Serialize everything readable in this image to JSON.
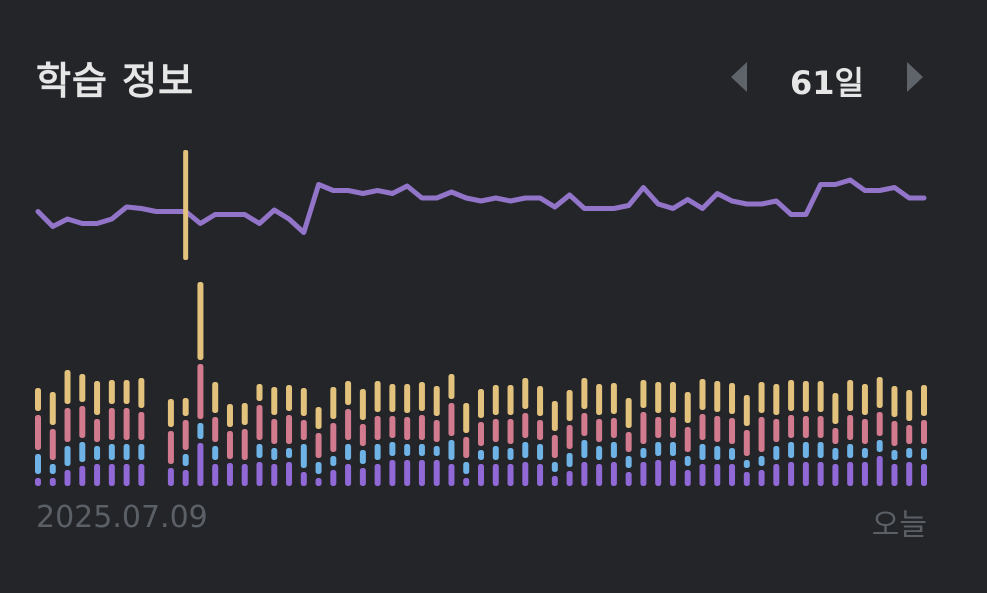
{
  "header": {
    "title": "학습 정보",
    "range_label": "61일",
    "prev_icon": "chevron-left-icon",
    "next_icon": "chevron-right-icon"
  },
  "footer": {
    "start_date": "2025.07.09",
    "end_label": "오늘"
  },
  "colors": {
    "background": "#232529",
    "line": "#9274c9",
    "yellow": "#e3c27d",
    "pink": "#d27b8e",
    "blue": "#6fb3e6",
    "purple": "#9069d6",
    "highlight": "#e3c27d",
    "nav": "#5f646b"
  },
  "chart_data": {
    "type": "bar",
    "stacked": true,
    "days": 61,
    "highlight_index": 10,
    "line_series": {
      "values": [
        59,
        49,
        54,
        51,
        51,
        54,
        62,
        61,
        59,
        59,
        59,
        51,
        57,
        57,
        57,
        51,
        60,
        54,
        45,
        77,
        73,
        73,
        71,
        73,
        71,
        76,
        68,
        68,
        72,
        68,
        66,
        68,
        66,
        68,
        68,
        62,
        70,
        61,
        61,
        61,
        63,
        75,
        64,
        61,
        67,
        61,
        71,
        66,
        64,
        64,
        66,
        57,
        57,
        77,
        77,
        80,
        73,
        73,
        75,
        68,
        68
      ]
    },
    "series": [
      {
        "color_key": "purple",
        "values": [
          8,
          8,
          16,
          20,
          22,
          22,
          22,
          22,
          0,
          18,
          16,
          43,
          22,
          23,
          22,
          24,
          22,
          24,
          14,
          8,
          16,
          22,
          18,
          22,
          26,
          26,
          26,
          26,
          22,
          8,
          22,
          22,
          22,
          24,
          22,
          10,
          15,
          24,
          22,
          24,
          14,
          24,
          26,
          26,
          16,
          22,
          22,
          22,
          14,
          16,
          22,
          24,
          24,
          24,
          22,
          24,
          24,
          30,
          22,
          24,
          22
        ]
      },
      {
        "color_key": "blue",
        "values": [
          20,
          10,
          20,
          20,
          14,
          16,
          16,
          16,
          0,
          0,
          12,
          16,
          14,
          0,
          0,
          14,
          12,
          10,
          24,
          12,
          10,
          16,
          14,
          16,
          14,
          12,
          12,
          10,
          20,
          12,
          10,
          14,
          12,
          16,
          16,
          10,
          14,
          18,
          14,
          16,
          12,
          10,
          14,
          14,
          10,
          16,
          14,
          12,
          8,
          10,
          14,
          16,
          16,
          16,
          12,
          14,
          10,
          12,
          10,
          10,
          12
        ]
      },
      {
        "color_key": "pink",
        "values": [
          35,
          31,
          34,
          32,
          23,
          32,
          32,
          28,
          0,
          33,
          30,
          55,
          25,
          28,
          31,
          35,
          25,
          29,
          20,
          25,
          29,
          31,
          22,
          24,
          22,
          23,
          25,
          22,
          33,
          21,
          24,
          23,
          25,
          25,
          20,
          23,
          24,
          23,
          23,
          20,
          20,
          32,
          21,
          21,
          25,
          26,
          26,
          26,
          26,
          35,
          23,
          23,
          22,
          22,
          16,
          25,
          25,
          24,
          25,
          19,
          24
        ]
      },
      {
        "color_key": "yellow",
        "values": [
          23,
          33,
          34,
          28,
          34,
          24,
          24,
          30,
          0,
          28,
          18,
          78,
          31,
          23,
          22,
          17,
          28,
          26,
          28,
          22,
          32,
          24,
          31,
          31,
          28,
          29,
          29,
          30,
          25,
          30,
          29,
          30,
          30,
          31,
          30,
          30,
          31,
          31,
          31,
          31,
          30,
          28,
          31,
          31,
          31,
          31,
          31,
          31,
          31,
          31,
          31,
          31,
          31,
          31,
          31,
          31,
          31,
          31,
          31,
          31,
          31
        ]
      }
    ]
  }
}
